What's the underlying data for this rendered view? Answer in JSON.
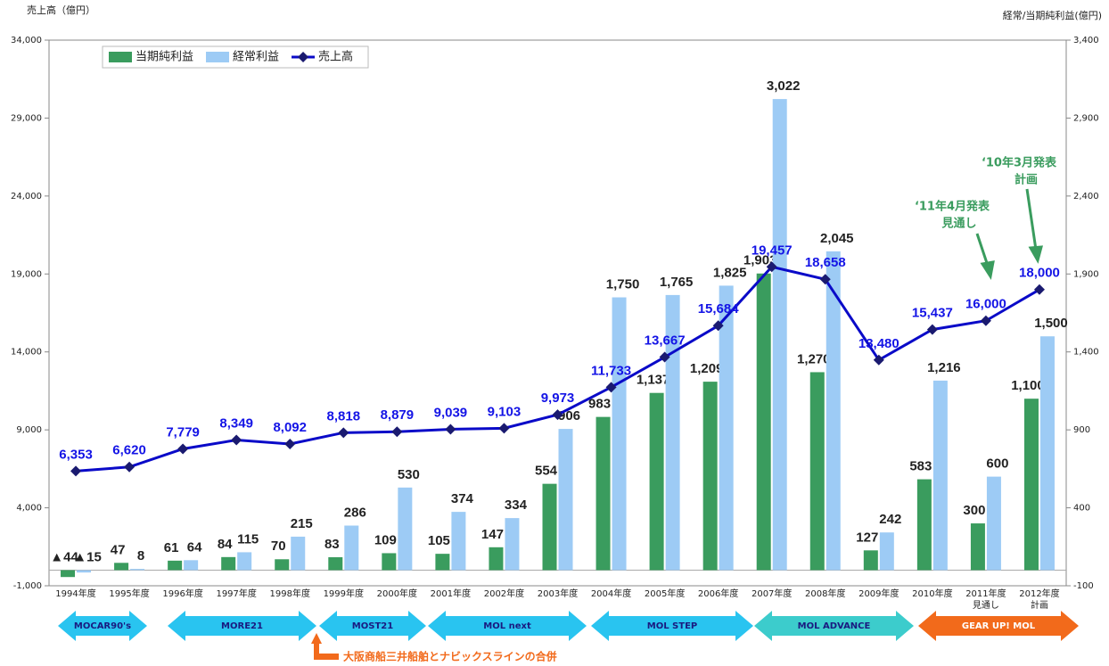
{
  "chart_data": {
    "type": "bar",
    "y_label": "売上高（億円）",
    "y2_label": "経常/当期純利益(億円)",
    "categories": [
      "1994年度",
      "1995年度",
      "1996年度",
      "1997年度",
      "1998年度",
      "1999年度",
      "2000年度",
      "2001年度",
      "2002年度",
      "2003年度",
      "2004年度",
      "2005年度",
      "2006年度",
      "2007年度",
      "2008年度",
      "2009年度",
      "2010年度",
      "2011年度",
      "2012年度"
    ],
    "category_notes": [
      null,
      null,
      null,
      null,
      null,
      null,
      null,
      null,
      null,
      null,
      null,
      null,
      null,
      null,
      null,
      null,
      null,
      "見通し",
      "計画"
    ],
    "ylim": [
      -1000,
      34000
    ],
    "yticks": [
      {
        "value": -1000,
        "label": "-1,000"
      },
      {
        "value": 4000,
        "label": "4,000"
      },
      {
        "value": 9000,
        "label": "9,000"
      },
      {
        "value": 14000,
        "label": "14,000"
      },
      {
        "value": 19000,
        "label": "19,000"
      },
      {
        "value": 24000,
        "label": "24,000"
      },
      {
        "value": 29000,
        "label": "29,000"
      },
      {
        "value": 34000,
        "label": "34,000"
      }
    ],
    "y2lim": [
      -100,
      3400
    ],
    "y2ticks": [
      -100,
      400,
      900,
      {
        "value": 1400,
        "label": "1,400"
      },
      {
        "value": 1900,
        "label": "1,900"
      },
      {
        "value": 2400,
        "label": "2,400"
      },
      {
        "value": 2900,
        "label": "2,900"
      },
      {
        "value": 3400,
        "label": "3,400"
      }
    ],
    "series": [
      {
        "name": "当期純利益",
        "type": "bar",
        "axis": "y2",
        "color": "#3a9c5e",
        "values": [
          -44,
          47,
          61,
          84,
          70,
          83,
          109,
          105,
          147,
          554,
          983,
          1137,
          1209,
          1903,
          1270,
          127,
          583,
          300,
          1100
        ],
        "value_labels": [
          "▲44",
          "47",
          "61",
          "84",
          "70",
          "83",
          "109",
          "105",
          "147",
          "554",
          "983",
          "1,137",
          "1,209",
          "1,903",
          "1,270",
          "127",
          "583",
          "300",
          "1,100"
        ]
      },
      {
        "name": "経常利益",
        "type": "bar",
        "axis": "y2",
        "color": "#9dcbf5",
        "values": [
          -15,
          8,
          64,
          115,
          215,
          286,
          530,
          374,
          334,
          906,
          1750,
          1765,
          1825,
          3022,
          2045,
          242,
          1216,
          600,
          1500
        ],
        "value_labels": [
          "▲15",
          "8",
          "64",
          "115",
          "215",
          "286",
          "530",
          "374",
          "334",
          "906",
          "1,750",
          "1,765",
          "1,825",
          "3,022",
          "2,045",
          "242",
          "1,216",
          "600",
          "1,500"
        ]
      },
      {
        "name": "売上高",
        "type": "line",
        "color": "#0a0ac8",
        "values": [
          6353,
          6620,
          7779,
          8349,
          8092,
          8818,
          8879,
          9039,
          9103,
          9973,
          11733,
          13667,
          15684,
          19457,
          18658,
          13480,
          15437,
          16000,
          18000
        ],
        "value_labels": [
          "6,353",
          "6,620",
          "7,779",
          "8,349",
          "8,092",
          "8,818",
          "8,879",
          "9,039",
          "9,103",
          "9,973",
          "11,733",
          "13,667",
          "15,684",
          "19,457",
          "18,658",
          "13,480",
          "15,437",
          "16,000",
          "18,000"
        ]
      }
    ],
    "legend": "upper left",
    "annotations": [
      [
        "‘11年4月発表",
        "見通し"
      ],
      [
        "‘10年3月発表",
        "計画"
      ]
    ],
    "eras": [
      "MOCAR90's",
      "MORE21",
      "MOST21",
      "MOL next",
      "MOL STEP",
      "MOL ADVANCE",
      "GEAR UP! MOL"
    ],
    "note": "大阪商船三井船舶とナビックスラインの合併"
  }
}
